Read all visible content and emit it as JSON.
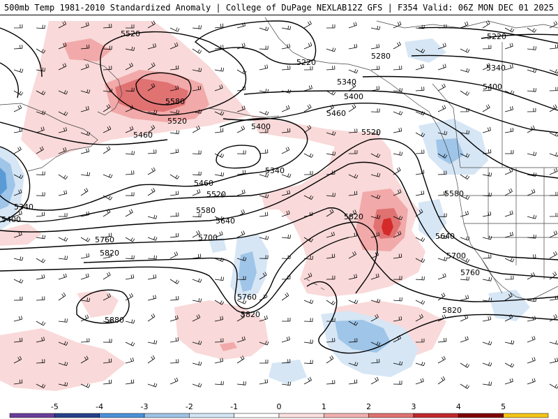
{
  "header": {
    "title_left": "500mb Temp 1981-2010 Standardized Anomaly | College of DuPage NEXLAB",
    "title_right": "12Z GFS | F354 Valid: 06Z MON DEC 01 2025"
  },
  "contours": [
    {
      "label": "5520"
    },
    {
      "label": "5580"
    },
    {
      "label": "5520"
    },
    {
      "label": "5460"
    },
    {
      "label": "5220"
    },
    {
      "label": "5280"
    },
    {
      "label": "5340"
    },
    {
      "label": "5400"
    },
    {
      "label": "5460"
    },
    {
      "label": "5520"
    },
    {
      "label": "5220"
    },
    {
      "label": "5340"
    },
    {
      "label": "5400"
    },
    {
      "label": "5400"
    },
    {
      "label": "5340"
    },
    {
      "label": "5460"
    },
    {
      "label": "5520"
    },
    {
      "label": "5340"
    },
    {
      "label": "5400"
    },
    {
      "label": "5580"
    },
    {
      "label": "5640"
    },
    {
      "label": "5700"
    },
    {
      "label": "5760"
    },
    {
      "label": "5820"
    },
    {
      "label": "5820"
    },
    {
      "label": "5580"
    },
    {
      "label": "5640"
    },
    {
      "label": "5700"
    },
    {
      "label": "5760"
    },
    {
      "label": "5760"
    },
    {
      "label": "5820"
    },
    {
      "label": "5880"
    },
    {
      "label": "5820"
    }
  ],
  "colorbar": {
    "ticks": [
      "-5",
      "-4",
      "-3",
      "-2",
      "-1",
      "0",
      "1",
      "2",
      "3",
      "4",
      "5"
    ],
    "colors": [
      "#6a3d9a",
      "#27408b",
      "#4a90d9",
      "#9ec3e6",
      "#d4e6f5",
      "#ffffff",
      "#fde0e0",
      "#f3b0b0",
      "#e07070",
      "#c0282d",
      "#7f0000",
      "#f5c518"
    ]
  },
  "colors": {
    "warm_light": "#f9d9d9",
    "warm_medium": "#f2a9a9",
    "warm_strong": "#e07272",
    "warm_max": "#d42a2a",
    "cool_light": "#d6e6f5",
    "cool_medium": "#9fc5e8",
    "cool_strong": "#5b9bd5"
  }
}
